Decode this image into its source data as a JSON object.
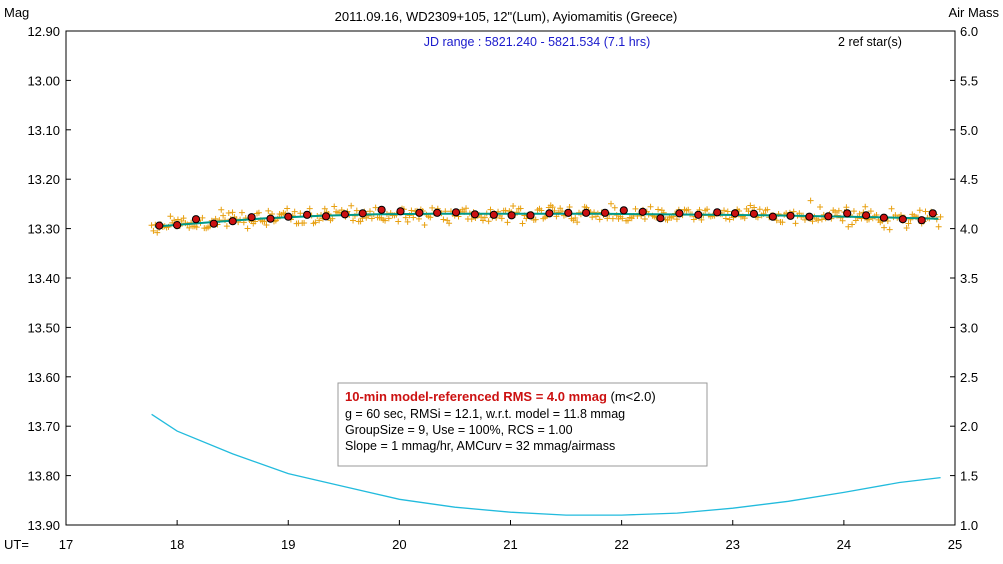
{
  "header": {
    "title": "2011.09.16, WD2309+105, 12\"(Lum), Ayiomamitis (Greece)",
    "left_axis_label": "Mag",
    "right_axis_label": "Air Mass",
    "x_axis_label": "UT=",
    "jd_range": "JD range : 5821.240 - 5821.534 (7.1 hrs)",
    "ref_stars": "2 ref star(s)"
  },
  "stats_box": {
    "line1_bold": "10-min model-referenced RMS = 4.0 mmag",
    "line1_tail": " (m<2.0)",
    "line2": "g = 60 sec, RMSi = 12.1, w.r.t. model = 11.8 mmag",
    "line3": "GroupSize = 9, Use = 100%, RCS = 1.00",
    "line4": "Slope = 1 mmag/hr, AMCurv = 32 mmag/airmass"
  },
  "colors": {
    "raw_points": "#e8a010",
    "binned_fill": "#cc1111",
    "model_line": "#009a8a",
    "airmass_line": "#22bbdd",
    "title_text": "#000000",
    "jd_text": "#1a1acc",
    "rms_text": "#cc1111"
  },
  "chart_data": {
    "type": "scatter",
    "x_range": [
      17,
      25
    ],
    "x_ticks": [
      17,
      18,
      19,
      20,
      21,
      22,
      23,
      24,
      25
    ],
    "x_tick_labels": [
      "17",
      "18",
      "19",
      "20",
      "21",
      "22",
      "23",
      "24",
      "25"
    ],
    "y_left_range": [
      13.9,
      12.9
    ],
    "y_left_inverted": true,
    "y_left_tick_labels": [
      "12.90",
      "13.00",
      "13.10",
      "13.20",
      "13.30",
      "13.40",
      "13.50",
      "13.60",
      "13.70",
      "13.80",
      "13.90"
    ],
    "y_right_range": [
      1.0,
      6.0
    ],
    "y_right_tick_labels": [
      "6.0",
      "5.5",
      "5.0",
      "4.5",
      "4.0",
      "3.5",
      "3.0",
      "2.5",
      "2.0",
      "1.5",
      "1.0"
    ],
    "grid": false,
    "raw_points_mag": {
      "x_start": 17.77,
      "x_end": 24.87,
      "count": 420,
      "mean_near": 13.28,
      "scatter_rms": 0.012
    },
    "binned_points": {
      "x": [
        17.84,
        18.0,
        18.17,
        18.33,
        18.5,
        18.67,
        18.84,
        19.0,
        19.17,
        19.34,
        19.51,
        19.67,
        19.84,
        20.01,
        20.18,
        20.34,
        20.51,
        20.68,
        20.85,
        21.01,
        21.18,
        21.35,
        21.52,
        21.68,
        21.85,
        22.02,
        22.19,
        22.35,
        22.52,
        22.69,
        22.86,
        23.02,
        23.19,
        23.36,
        23.52,
        23.69,
        23.86,
        24.03,
        24.2,
        24.36,
        24.53,
        24.7,
        24.8
      ],
      "y": [
        13.294,
        13.293,
        13.281,
        13.29,
        13.285,
        13.277,
        13.28,
        13.276,
        13.272,
        13.275,
        13.271,
        13.269,
        13.262,
        13.265,
        13.268,
        13.268,
        13.267,
        13.271,
        13.272,
        13.273,
        13.273,
        13.269,
        13.268,
        13.268,
        13.268,
        13.263,
        13.266,
        13.279,
        13.269,
        13.272,
        13.267,
        13.269,
        13.27,
        13.276,
        13.274,
        13.276,
        13.275,
        13.269,
        13.273,
        13.278,
        13.281,
        13.283,
        13.269
      ]
    },
    "model_mag": {
      "x": [
        17.8,
        18.3,
        18.8,
        19.3,
        19.8,
        20.3,
        20.8,
        21.3,
        21.8,
        22.3,
        22.8,
        23.3,
        23.8,
        24.3,
        24.85
      ],
      "y": [
        13.296,
        13.287,
        13.279,
        13.274,
        13.271,
        13.27,
        13.27,
        13.27,
        13.27,
        13.271,
        13.272,
        13.273,
        13.275,
        13.277,
        13.28
      ]
    },
    "airmass": {
      "x": [
        17.77,
        18.0,
        18.5,
        19.0,
        19.5,
        20.0,
        20.5,
        21.0,
        21.5,
        22.0,
        22.5,
        23.0,
        23.5,
        24.0,
        24.5,
        24.87
      ],
      "y": [
        2.12,
        1.95,
        1.72,
        1.52,
        1.39,
        1.26,
        1.18,
        1.13,
        1.1,
        1.1,
        1.12,
        1.17,
        1.24,
        1.33,
        1.43,
        1.48
      ]
    }
  }
}
